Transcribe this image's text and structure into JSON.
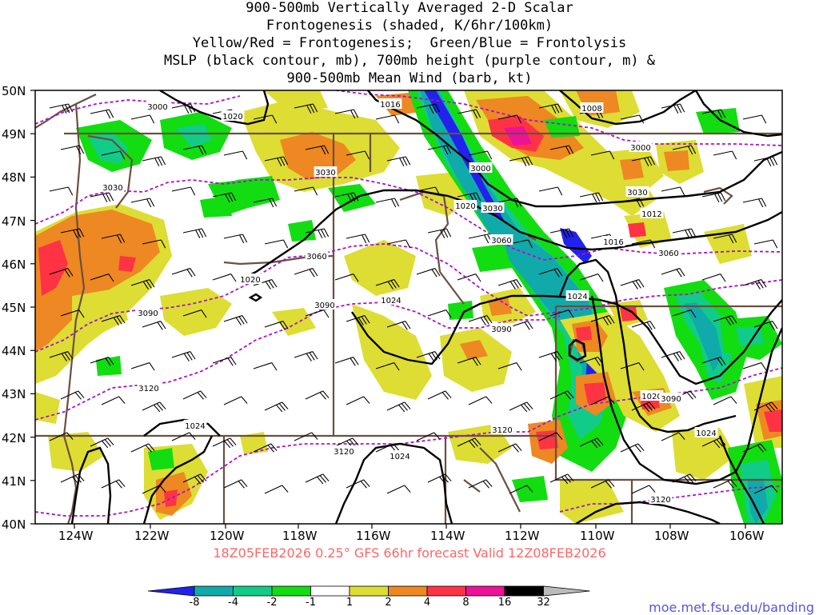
{
  "titles": {
    "line1": "900-500mb Vertically Averaged 2-D Scalar",
    "line2": "Frontogenesis (shaded, K/6hr/100km)",
    "line3": "Yellow/Red = Frontogenesis;  Green/Blue = Frontolysis",
    "line4": "MSLP (black contour, mb), 700mb height (purple contour, m) &",
    "line5": "900-500mb Mean Wind (barb, kt)"
  },
  "lat_labels": [
    "50N",
    "49N",
    "48N",
    "47N",
    "46N",
    "45N",
    "44N",
    "43N",
    "42N",
    "41N",
    "40N"
  ],
  "lon_labels": [
    "124W",
    "122W",
    "120W",
    "118W",
    "116W",
    "114W",
    "112W",
    "110W",
    "108W",
    "106W"
  ],
  "footer": "18Z05FEB2026 0.25° GFS 66hr forecast Valid 12Z08FEB2026",
  "colorbar": {
    "labels": [
      "-8",
      "-4",
      "-2",
      "-1",
      "1",
      "2",
      "4",
      "8",
      "16",
      "32"
    ],
    "colors": [
      "#2222ee",
      "#11aaaa",
      "#11cc88",
      "#11dd11",
      "#ffffff",
      "#dddd33",
      "#ee8822",
      "#ff3344",
      "#ee1199",
      "#000000",
      "#bbbbbb"
    ]
  },
  "credit": "moe.met.fsu.edu/banding",
  "pressure_labels": [
    "1016",
    "1008",
    "1020",
    "1020",
    "1012",
    "1016",
    "1020",
    "1024",
    "1024",
    "1024",
    "1020",
    "1024",
    "1024"
  ],
  "height_labels": [
    "3000",
    "3000",
    "3000",
    "3030",
    "3030",
    "3030",
    "3030",
    "3060",
    "3060",
    "3060",
    "3090",
    "3090",
    "3090",
    "3090",
    "3120",
    "3120",
    "3120",
    "3120"
  ],
  "map": {
    "shading_colors": {
      "frontolysis_weak": "#11dd11",
      "frontolysis_mod": "#11cc88",
      "frontolysis_strong": "#11aaaa",
      "frontolysis_max": "#2222ee",
      "frontogenesis_weak": "#dddd33",
      "frontogenesis_mod": "#ee8822",
      "frontogenesis_strong": "#ff3344",
      "frontogenesis_max": "#ee1199"
    },
    "border_color": "#6b4f3f",
    "mslp_color": "#000000",
    "height_color": "#aa11cc"
  }
}
